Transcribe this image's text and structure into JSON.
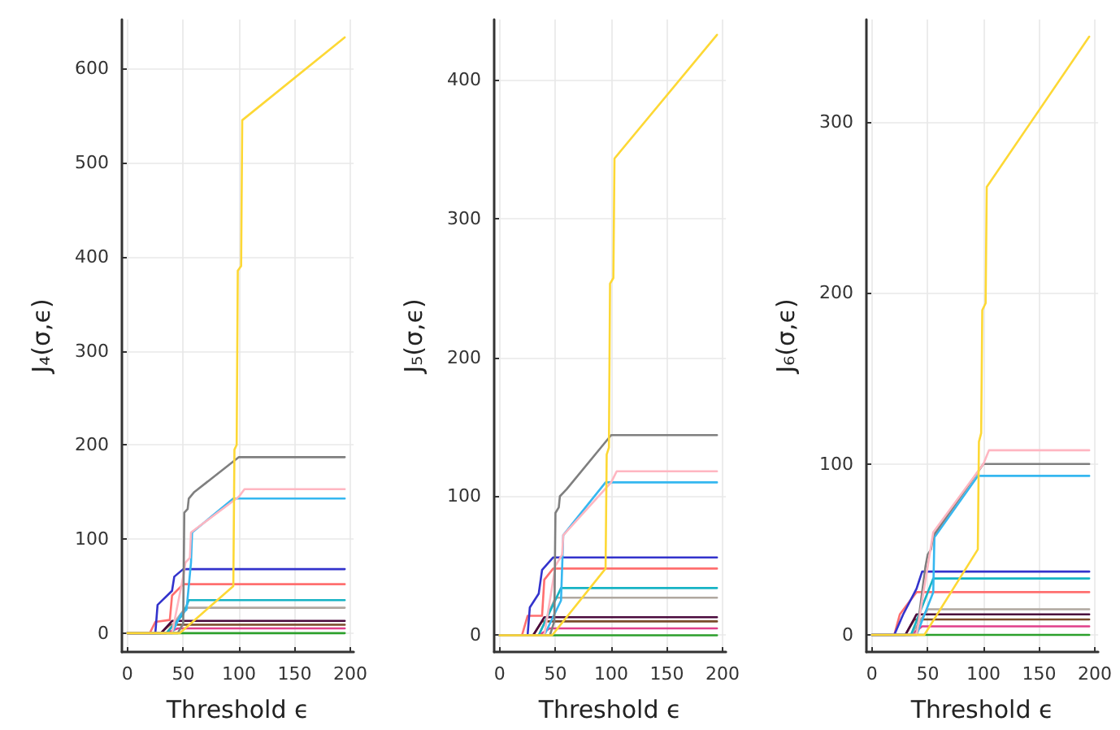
{
  "chart_data": [
    {
      "type": "line",
      "xlabel": "Threshold ϵ",
      "ylabel": "J₄(σ,ϵ)",
      "xlim": [
        -5,
        203
      ],
      "xticks": [
        0,
        50,
        100,
        150,
        200
      ],
      "ylim": [
        -20,
        652
      ],
      "yticks": [
        0,
        100,
        200,
        300,
        400,
        500,
        600
      ],
      "grid": true,
      "series": [
        {
          "color": "#2ca02c",
          "x": [
            0,
            195
          ],
          "values": [
            0,
            0
          ]
        },
        {
          "color": "#e0408a",
          "x": [
            0,
            35,
            45,
            195
          ],
          "values": [
            0,
            0,
            5,
            5
          ]
        },
        {
          "color": "#7a4a2a",
          "x": [
            0,
            30,
            38,
            195
          ],
          "values": [
            0,
            0,
            9,
            9
          ]
        },
        {
          "color": "#4b0a3d",
          "x": [
            0,
            30,
            40,
            195
          ],
          "values": [
            0,
            0,
            13,
            13
          ]
        },
        {
          "color": "#b0a8a0",
          "x": [
            0,
            35,
            52,
            195
          ],
          "values": [
            0,
            0,
            27,
            27
          ]
        },
        {
          "color": "#16b3c4",
          "x": [
            0,
            35,
            50,
            55,
            195
          ],
          "values": [
            0,
            0,
            20,
            35,
            35
          ]
        },
        {
          "color": "#ff6f6f",
          "x": [
            0,
            20,
            25,
            38,
            40,
            50,
            195
          ],
          "values": [
            0,
            0,
            12,
            14,
            40,
            52,
            52
          ]
        },
        {
          "color": "#3333cc",
          "x": [
            0,
            25,
            27,
            40,
            42,
            50,
            195
          ],
          "values": [
            0,
            0,
            30,
            45,
            60,
            68,
            68
          ]
        },
        {
          "color": "#35b7f0",
          "x": [
            0,
            40,
            48,
            53,
            57,
            58,
            95,
            195
          ],
          "values": [
            0,
            0,
            20,
            25,
            75,
            107,
            143,
            143
          ]
        },
        {
          "color": "#ffb6c1",
          "x": [
            0,
            40,
            50,
            52,
            56,
            57,
            100,
            105,
            195
          ],
          "values": [
            0,
            0,
            60,
            75,
            80,
            107,
            145,
            153,
            153
          ]
        },
        {
          "color": "#7f7f7f",
          "x": [
            0,
            45,
            50,
            51,
            54,
            55,
            60,
            100,
            195
          ],
          "values": [
            0,
            0,
            10,
            128,
            132,
            143,
            150,
            187,
            187
          ]
        },
        {
          "color": "#fdd835",
          "x": [
            0,
            47,
            95,
            96,
            98,
            99,
            102,
            103,
            195
          ],
          "values": [
            0,
            0,
            50,
            195,
            200,
            385,
            390,
            545,
            633
          ]
        }
      ]
    },
    {
      "type": "line",
      "xlabel": "Threshold ϵ",
      "ylabel": "J₅(σ,ϵ)",
      "xlim": [
        -5,
        203
      ],
      "xticks": [
        0,
        50,
        100,
        150,
        200
      ],
      "ylim": [
        -12,
        443
      ],
      "yticks": [
        0,
        100,
        200,
        300,
        400
      ],
      "grid": true,
      "series": [
        {
          "color": "#2ca02c",
          "x": [
            0,
            195
          ],
          "values": [
            0,
            0
          ]
        },
        {
          "color": "#e0408a",
          "x": [
            0,
            35,
            45,
            195
          ],
          "values": [
            0,
            0,
            5,
            5
          ]
        },
        {
          "color": "#7a4a2a",
          "x": [
            0,
            30,
            38,
            195
          ],
          "values": [
            0,
            0,
            10,
            10
          ]
        },
        {
          "color": "#4b0a3d",
          "x": [
            0,
            30,
            40,
            195
          ],
          "values": [
            0,
            0,
            13,
            13
          ]
        },
        {
          "color": "#b0a8a0",
          "x": [
            0,
            35,
            50,
            195
          ],
          "values": [
            0,
            0,
            27,
            27
          ]
        },
        {
          "color": "#16b3c4",
          "x": [
            0,
            35,
            55,
            195
          ],
          "values": [
            0,
            0,
            34,
            34
          ]
        },
        {
          "color": "#ff6f6f",
          "x": [
            0,
            20,
            25,
            38,
            40,
            48,
            195
          ],
          "values": [
            0,
            0,
            14,
            14,
            40,
            48,
            48
          ]
        },
        {
          "color": "#3333cc",
          "x": [
            0,
            25,
            27,
            35,
            38,
            48,
            195
          ],
          "values": [
            0,
            0,
            20,
            30,
            47,
            56,
            56
          ]
        },
        {
          "color": "#35b7f0",
          "x": [
            0,
            40,
            55,
            57,
            95,
            195
          ],
          "values": [
            0,
            0,
            25,
            72,
            110,
            110
          ]
        },
        {
          "color": "#ffb6c1",
          "x": [
            0,
            40,
            50,
            56,
            57,
            100,
            105,
            195
          ],
          "values": [
            0,
            0,
            50,
            58,
            72,
            110,
            118,
            118
          ]
        },
        {
          "color": "#7f7f7f",
          "x": [
            0,
            45,
            49,
            50,
            53,
            54,
            60,
            100,
            195
          ],
          "values": [
            0,
            0,
            10,
            88,
            92,
            100,
            105,
            144,
            144
          ]
        },
        {
          "color": "#fdd835",
          "x": [
            0,
            47,
            95,
            96,
            98,
            99,
            102,
            103,
            195
          ],
          "values": [
            0,
            0,
            48,
            130,
            135,
            253,
            257,
            343,
            432
          ]
        }
      ]
    },
    {
      "type": "line",
      "xlabel": "Threshold ϵ",
      "ylabel": "J₆(σ,ϵ)",
      "xlim": [
        -5,
        203
      ],
      "xticks": [
        0,
        50,
        100,
        150,
        200
      ],
      "ylim": [
        -10,
        360
      ],
      "yticks": [
        0,
        100,
        200,
        300
      ],
      "grid": true,
      "series": [
        {
          "color": "#2ca02c",
          "x": [
            0,
            195
          ],
          "values": [
            0,
            0
          ]
        },
        {
          "color": "#e0408a",
          "x": [
            0,
            35,
            45,
            195
          ],
          "values": [
            0,
            0,
            5,
            5
          ]
        },
        {
          "color": "#7a4a2a",
          "x": [
            0,
            30,
            38,
            195
          ],
          "values": [
            0,
            0,
            9,
            9
          ]
        },
        {
          "color": "#4b0a3d",
          "x": [
            0,
            30,
            40,
            195
          ],
          "values": [
            0,
            0,
            12,
            12
          ]
        },
        {
          "color": "#b0a8a0",
          "x": [
            0,
            35,
            50,
            195
          ],
          "values": [
            0,
            0,
            15,
            15
          ]
        },
        {
          "color": "#ff6f6f",
          "x": [
            0,
            20,
            25,
            40,
            195
          ],
          "values": [
            0,
            0,
            12,
            25,
            25
          ]
        },
        {
          "color": "#16b3c4",
          "x": [
            0,
            35,
            55,
            195
          ],
          "values": [
            0,
            0,
            33,
            33
          ]
        },
        {
          "color": "#3333cc",
          "x": [
            0,
            20,
            28,
            40,
            45,
            195
          ],
          "values": [
            0,
            0,
            12,
            27,
            37,
            37
          ]
        },
        {
          "color": "#35b7f0",
          "x": [
            0,
            40,
            55,
            56,
            95,
            195
          ],
          "values": [
            0,
            0,
            25,
            57,
            93,
            93
          ]
        },
        {
          "color": "#7f7f7f",
          "x": [
            0,
            40,
            48,
            50,
            53,
            55,
            100,
            195
          ],
          "values": [
            0,
            0,
            40,
            47,
            50,
            58,
            100,
            100
          ]
        },
        {
          "color": "#ffb6c1",
          "x": [
            0,
            40,
            50,
            55,
            100,
            105,
            195
          ],
          "values": [
            0,
            0,
            40,
            60,
            100,
            108,
            108
          ]
        },
        {
          "color": "#fdd835",
          "x": [
            0,
            47,
            95,
            96,
            98,
            99,
            102,
            103,
            195
          ],
          "values": [
            0,
            0,
            50,
            113,
            118,
            190,
            194,
            262,
            350
          ]
        }
      ]
    }
  ]
}
